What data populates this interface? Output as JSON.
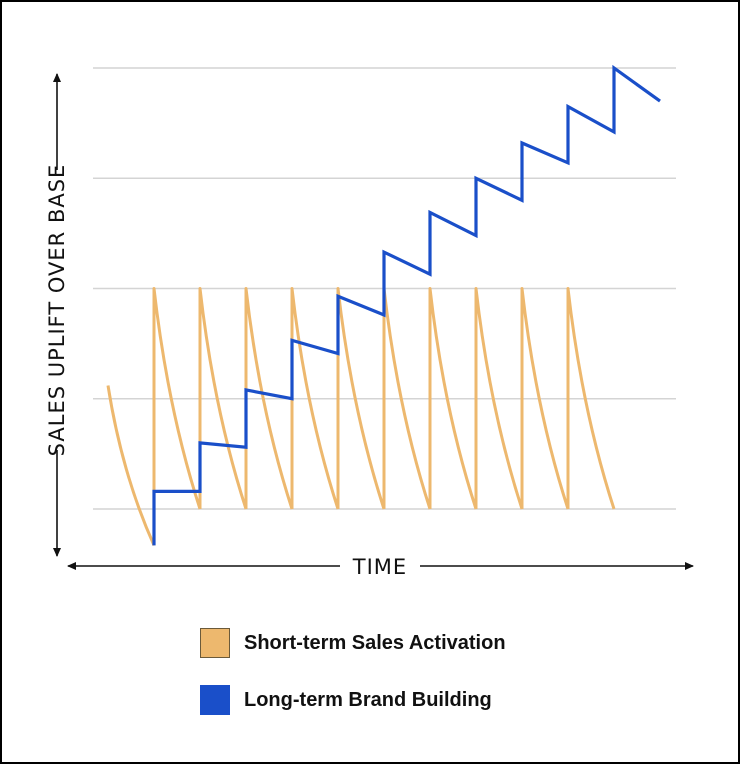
{
  "chart_data": {
    "type": "line",
    "title": "",
    "xlabel": "TIME",
    "ylabel": "SALES UPLIFT OVER BASE",
    "grid": true,
    "gridlines": [
      0,
      1,
      2,
      3,
      4
    ],
    "xlim": [
      0,
      12
    ],
    "ylim": [
      -0.4,
      4.2
    ],
    "legend_position": "bottom",
    "series": [
      {
        "name": "Short-term Sales Activation",
        "color": "#EDB86E",
        "style": "decaying pulses",
        "pulses": [
          {
            "start": 0,
            "peak": 1.12,
            "end_x": 1,
            "end": -0.33
          },
          {
            "start": 1,
            "peak": 2,
            "end_x": 2,
            "end": 0
          },
          {
            "start": 2,
            "peak": 2,
            "end_x": 3,
            "end": 0
          },
          {
            "start": 3,
            "peak": 2,
            "end_x": 4,
            "end": 0
          },
          {
            "start": 4,
            "peak": 2,
            "end_x": 5,
            "end": 0
          },
          {
            "start": 5,
            "peak": 2,
            "end_x": 6,
            "end": 0
          },
          {
            "start": 6,
            "peak": 2,
            "end_x": 7,
            "end": 0
          },
          {
            "start": 7,
            "peak": 2,
            "end_x": 8,
            "end": 0
          },
          {
            "start": 8,
            "peak": 2,
            "end_x": 9,
            "end": 0
          },
          {
            "start": 9,
            "peak": 2,
            "end_x": 10,
            "end": 0
          },
          {
            "start": 10,
            "peak": 2,
            "end_x": 11,
            "end": 0
          }
        ]
      },
      {
        "name": "Long-term Brand Building",
        "color": "#1A4FC9",
        "points": [
          [
            1,
            -0.33
          ],
          [
            1,
            0.16
          ],
          [
            2,
            0.16
          ],
          [
            2,
            0.6
          ],
          [
            3,
            0.56
          ],
          [
            3,
            1.08
          ],
          [
            4,
            1.0
          ],
          [
            4,
            1.53
          ],
          [
            5,
            1.41
          ],
          [
            5,
            1.93
          ],
          [
            6,
            1.76
          ],
          [
            6,
            2.33
          ],
          [
            7,
            2.13
          ],
          [
            7,
            2.69
          ],
          [
            8,
            2.48
          ],
          [
            8,
            3.0
          ],
          [
            9,
            2.8
          ],
          [
            9,
            3.32
          ],
          [
            10,
            3.14
          ],
          [
            10,
            3.65
          ],
          [
            11,
            3.42
          ],
          [
            11,
            4.0
          ],
          [
            12,
            3.7
          ]
        ]
      }
    ]
  },
  "legend": {
    "items": [
      {
        "label": "Short-term Sales Activation",
        "color": "#EDB86E"
      },
      {
        "label": "Long-term Brand Building",
        "color": "#1A4FC9"
      }
    ]
  }
}
